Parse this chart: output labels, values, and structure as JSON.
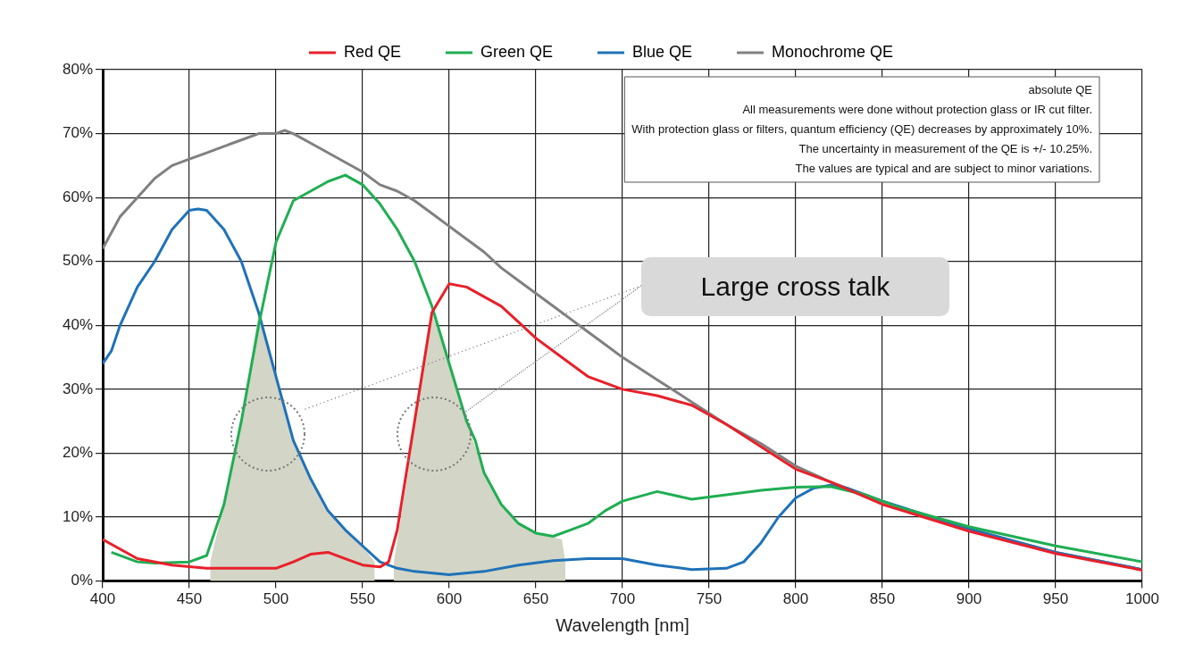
{
  "chart_data": {
    "type": "line",
    "xlabel": "Wavelength [nm]",
    "xlim": [
      400,
      1000
    ],
    "xticks": [
      400,
      450,
      500,
      550,
      600,
      650,
      700,
      750,
      800,
      850,
      900,
      950,
      1000
    ],
    "ylim": [
      0,
      80
    ],
    "yticks": [
      {
        "value": 0,
        "label": "0%"
      },
      {
        "value": 10,
        "label": "10%"
      },
      {
        "value": 20,
        "label": "20%"
      },
      {
        "value": 30,
        "label": "30%"
      },
      {
        "value": 40,
        "label": "40%"
      },
      {
        "value": 50,
        "label": "50%"
      },
      {
        "value": 60,
        "label": "60%"
      },
      {
        "value": 70,
        "label": "70%"
      },
      {
        "value": 80,
        "label": "80%"
      }
    ],
    "grid": true,
    "legend": "top",
    "marker": "none",
    "line_style": "solid",
    "series": [
      {
        "type": "area",
        "color": "#d3d5c6",
        "x": [
          462,
          470,
          480,
          490,
          500,
          510,
          520,
          530,
          540,
          550,
          557
        ],
        "values": [
          3,
          12,
          25,
          42,
          32,
          22,
          16,
          11,
          8,
          5.5,
          3
        ]
      },
      {
        "type": "area",
        "color": "#d3d5c6",
        "x": [
          568,
          575,
          580,
          590,
          595,
          600,
          610,
          620,
          630,
          640,
          650,
          665,
          667
        ],
        "values": [
          3,
          15,
          25,
          42,
          38,
          34,
          25,
          17,
          12,
          9,
          7.5,
          6.5,
          3
        ]
      },
      {
        "name": "Red QE",
        "color": "#e8202a",
        "x": [
          400,
          420,
          440,
          460,
          480,
          500,
          510,
          520,
          530,
          540,
          550,
          560,
          565,
          570,
          580,
          590,
          600,
          610,
          620,
          630,
          640,
          650,
          660,
          680,
          700,
          720,
          740,
          760,
          780,
          800,
          820,
          850,
          900,
          950,
          1000
        ],
        "values": [
          6.5,
          3.5,
          2.5,
          2,
          2,
          2,
          3,
          4.2,
          4.5,
          3.5,
          2.5,
          2.2,
          3,
          8,
          25,
          42,
          46.5,
          46,
          44.5,
          43,
          40.5,
          38,
          36,
          32,
          30,
          29,
          27.5,
          24.5,
          21,
          17.5,
          15.5,
          12,
          7.8,
          4.3,
          1.7
        ]
      },
      {
        "name": "Green QE",
        "color": "#1fae52",
        "x": [
          405,
          420,
          430,
          450,
          460,
          470,
          480,
          490,
          500,
          510,
          520,
          530,
          540,
          550,
          560,
          570,
          580,
          590,
          600,
          610,
          615,
          620,
          630,
          640,
          650,
          660,
          670,
          680,
          690,
          700,
          720,
          740,
          760,
          780,
          800,
          820,
          840,
          860,
          900,
          950,
          1000
        ],
        "values": [
          4.5,
          3,
          2.8,
          3,
          4,
          12,
          25,
          40,
          53,
          59.5,
          61,
          62.5,
          63.5,
          62,
          59,
          55,
          50,
          43,
          34,
          25,
          22,
          17,
          12,
          9,
          7.5,
          7,
          8,
          9,
          11,
          12.5,
          14,
          12.8,
          13.5,
          14.2,
          14.7,
          14.8,
          13.5,
          11.5,
          8.5,
          5.5,
          3
        ]
      },
      {
        "name": "Blue QE",
        "color": "#1f72b8",
        "x": [
          400,
          405,
          410,
          420,
          430,
          440,
          450,
          455,
          460,
          470,
          480,
          490,
          500,
          510,
          520,
          530,
          540,
          550,
          560,
          570,
          580,
          600,
          620,
          640,
          660,
          680,
          700,
          720,
          740,
          760,
          770,
          780,
          790,
          800,
          810,
          820,
          830,
          850,
          900,
          950,
          1000
        ],
        "values": [
          34,
          36,
          40,
          46,
          50,
          55,
          58,
          58.2,
          58,
          55,
          50,
          42,
          32,
          22,
          16,
          11,
          8,
          5.5,
          3,
          2,
          1.5,
          1,
          1.5,
          2.5,
          3.2,
          3.5,
          3.5,
          2.5,
          1.8,
          2,
          3,
          6,
          10,
          13,
          14.5,
          15,
          14.5,
          12.5,
          8.2,
          4.5,
          1.8
        ]
      },
      {
        "name": "Monochrome QE",
        "color": "#808080",
        "x": [
          400,
          410,
          420,
          430,
          440,
          450,
          460,
          470,
          480,
          490,
          500,
          505,
          510,
          520,
          530,
          540,
          550,
          560,
          570,
          580,
          590,
          600,
          610,
          620,
          630,
          640,
          650,
          660,
          670,
          680,
          690,
          700,
          720,
          740,
          760,
          780,
          800,
          820,
          850,
          900,
          950,
          1000
        ],
        "values": [
          52,
          57,
          60,
          63,
          65,
          66,
          67,
          68,
          69,
          70,
          70,
          70.5,
          70,
          68.5,
          67,
          65.5,
          64,
          62,
          61,
          59.5,
          57.5,
          55.5,
          53.5,
          51.5,
          49,
          47,
          45,
          43,
          41,
          39,
          37,
          35,
          31.5,
          28,
          24.5,
          21.5,
          18,
          15.5,
          12.5,
          8,
          4.5,
          1.8
        ]
      }
    ],
    "annotations": [
      "absolute QE",
      "All measurements were done without protection glass or IR cut filter.",
      "With protection glass or filters, quantum efficiency (QE) decreases by approximately 10%.",
      "The uncertainty in measurement of the QE is +/- 10.25%.",
      "The values are typical and are subject to minor variations.",
      "Large cross talk"
    ]
  }
}
